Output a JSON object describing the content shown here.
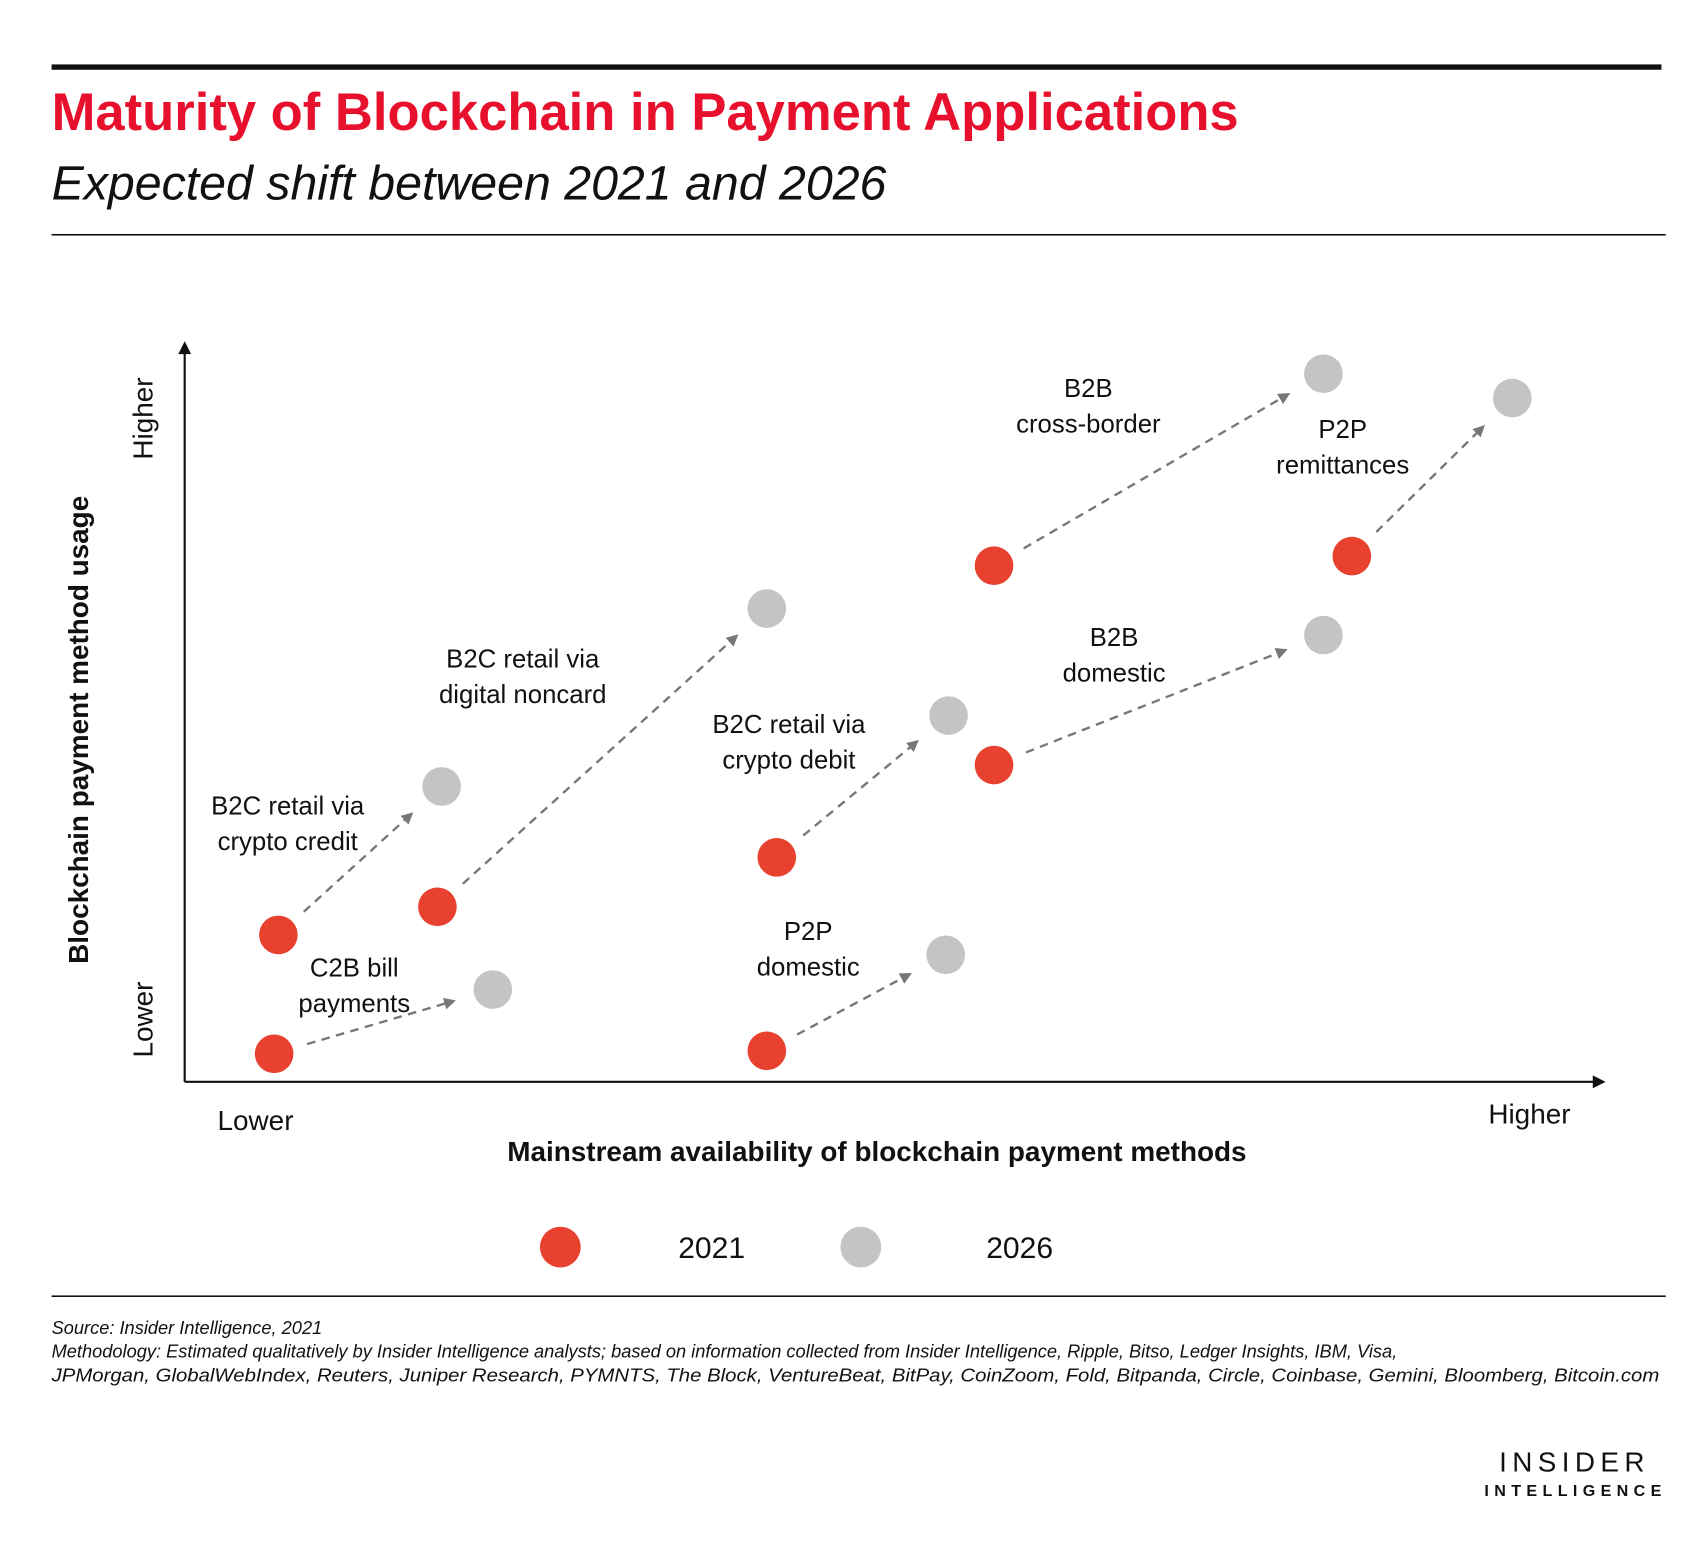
{
  "chart_data": {
    "type": "scatter",
    "title": "Maturity of Blockchain in Payment Applications",
    "subtitle": "Expected shift between 2021 and 2026",
    "xlabel": "Mainstream availability of blockchain payment methods",
    "ylabel": "Blockchain payment method usage",
    "x_ticks": [
      "Lower",
      "Higher"
    ],
    "y_ticks": [
      "Lower",
      "Higher"
    ],
    "xlim": [
      0,
      100
    ],
    "ylim": [
      0,
      100
    ],
    "grid": false,
    "legend_position": "bottom",
    "series": [
      {
        "name": "2021",
        "color": "#e8412f"
      },
      {
        "name": "2026",
        "color": "#c4c4c4"
      }
    ],
    "items": [
      {
        "label": [
          "C2B bill",
          "payments"
        ],
        "from": [
          6.3,
          3.8
        ],
        "to": [
          21.7,
          12.5
        ]
      },
      {
        "label": [
          "B2C retail via",
          "crypto credit"
        ],
        "from": [
          6.6,
          19.9
        ],
        "to": [
          18.1,
          40.0
        ]
      },
      {
        "label": [
          "B2C retail via",
          "digital noncard"
        ],
        "from": [
          17.8,
          23.7
        ],
        "to": [
          41.0,
          64.1
        ]
      },
      {
        "label": [
          "P2P",
          "domestic"
        ],
        "from": [
          41.0,
          4.2
        ],
        "to": [
          53.6,
          17.2
        ]
      },
      {
        "label": [
          "B2C retail via",
          "crypto debit"
        ],
        "from": [
          41.7,
          30.4
        ],
        "to": [
          53.8,
          49.6
        ]
      },
      {
        "label": [
          "B2B",
          "domestic"
        ],
        "from": [
          57.0,
          42.9
        ],
        "to": [
          80.2,
          60.5
        ]
      },
      {
        "label": [
          "B2B",
          "cross-border"
        ],
        "from": [
          57.0,
          69.9
        ],
        "to": [
          80.2,
          95.9
        ]
      },
      {
        "label": [
          "P2P",
          "remittances"
        ],
        "from": [
          82.2,
          71.2
        ],
        "to": [
          93.5,
          92.6
        ]
      }
    ],
    "arrow_color": "#777777"
  },
  "footer": {
    "source": "Source: Insider Intelligence, 2021",
    "methodology_1": "Methodology: Estimated qualitatively by Insider Intelligence analysts; based on information collected from Insider Intelligence, Ripple, Bitso, Ledger Insights, IBM, Visa,",
    "methodology_2": "JPMorgan, GlobalWebIndex, Reuters, Juniper Research, PYMNTS, The Block, VentureBeat, BitPay, CoinZoom, Fold, Bitpanda, Circle, Coinbase, Gemini, Bloomberg, Bitcoin.com"
  },
  "logo": {
    "line1": "INSIDER",
    "line2": "INTELLIGENCE"
  }
}
